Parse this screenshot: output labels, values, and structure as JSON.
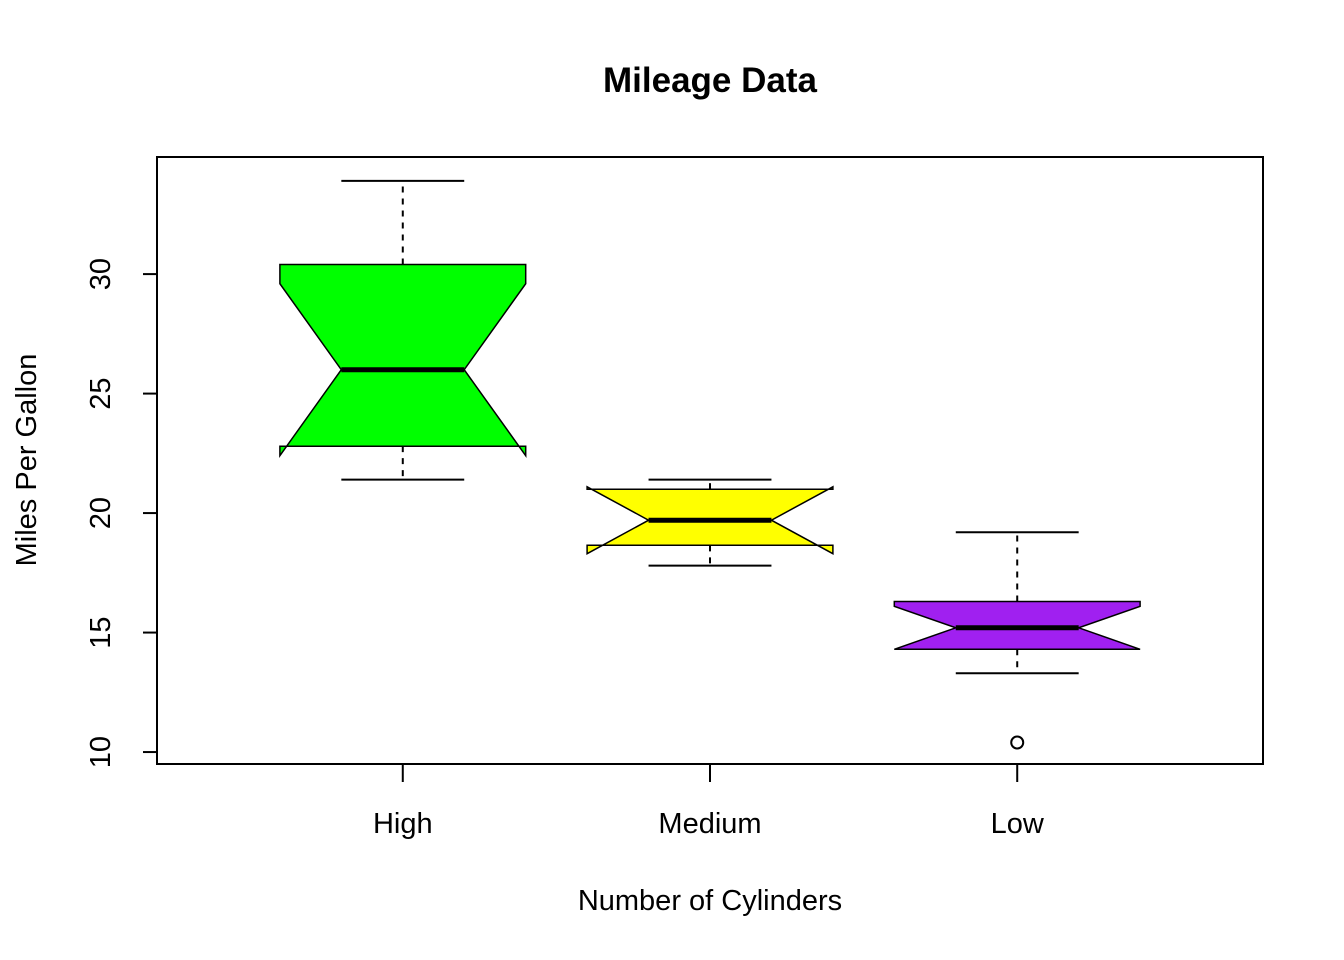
{
  "chart_data": {
    "type": "boxplot",
    "title": "Mileage Data",
    "xlabel": "Number of Cylinders",
    "ylabel": "Miles Per Gallon",
    "categories": [
      "High",
      "Medium",
      "Low"
    ],
    "colors": [
      "#00ff00",
      "#ffff00",
      "#a020f0"
    ],
    "notch": true,
    "ylim": [
      9.5,
      34.9
    ],
    "yticks": [
      10,
      15,
      20,
      25,
      30
    ],
    "ytick_labels": [
      "10",
      "15",
      "20",
      "25",
      "30"
    ],
    "boxes": [
      {
        "category": "High",
        "whisker_low": 21.4,
        "q1": 22.8,
        "median": 26.0,
        "q3": 30.4,
        "whisker_high": 33.9,
        "notch_low": 22.4,
        "notch_high": 29.6,
        "outliers": []
      },
      {
        "category": "Medium",
        "whisker_low": 17.8,
        "q1": 18.65,
        "median": 19.7,
        "q3": 21.0,
        "whisker_high": 21.4,
        "notch_low": 18.3,
        "notch_high": 21.1,
        "outliers": []
      },
      {
        "category": "Low",
        "whisker_low": 13.3,
        "q1": 14.3,
        "median": 15.2,
        "q3": 16.3,
        "whisker_high": 19.2,
        "notch_low": 14.3,
        "notch_high": 16.1,
        "outliers": [
          10.4
        ]
      }
    ],
    "grid": false,
    "legend": "none"
  }
}
